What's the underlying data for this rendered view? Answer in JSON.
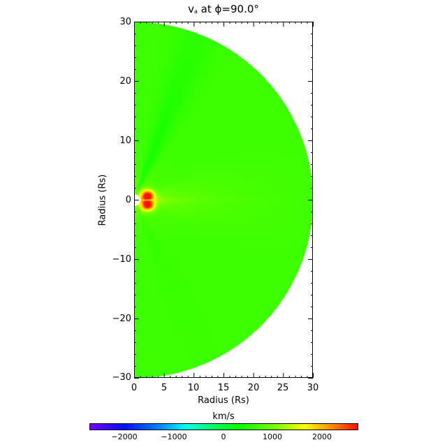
{
  "title": {
    "var": "v",
    "sub": "a",
    "rest": " at ϕ=90.0°"
  },
  "chart_data": {
    "type": "heatmap",
    "title": "v_a at ϕ=90.0°",
    "xlabel": "Radius (Rs)",
    "ylabel": "Radius (Rs)",
    "xlim": [
      0,
      30
    ],
    "ylim": [
      -30,
      30
    ],
    "xticks": [
      0,
      5,
      10,
      15,
      20,
      25,
      30
    ],
    "yticks": [
      -30,
      -20,
      -10,
      0,
      10,
      20,
      30
    ],
    "domain_shape": "half-disk of radius 30 Rs centered at origin, inner boundary ~1 Rs (white)",
    "colorbar": {
      "label": "km/s",
      "range": [
        -2700,
        2700
      ],
      "ticks": [
        -2000,
        -1000,
        0,
        1000,
        2000
      ],
      "colormap": "rainbow (purple-blue-cyan-green-yellow-red)"
    },
    "features": [
      {
        "description": "strong positive (~2000-2700 km/s) lobes just right of origin at r~1.5-3 Rs, split above and below equator",
        "value_max": 2600
      },
      {
        "description": "background mostly ~500-900 km/s (green)",
        "value": 700
      },
      {
        "description": "slightly lower values (~300 km/s, green-cyan) in streamer band toward upper-left",
        "value": 300
      },
      {
        "description": "yellow-green enhancement ~1100 km/s near equator within ~10 Rs",
        "value": 1100
      }
    ]
  },
  "axes": {
    "y_ticks": [
      "30",
      "20",
      "10",
      "0",
      "−10",
      "−20",
      "−30"
    ],
    "x_ticks": [
      "0",
      "5",
      "10",
      "15",
      "20",
      "25",
      "30"
    ],
    "xlabel": "Radius (Rs)",
    "ylabel": "Radius (Rs)"
  },
  "colorbar": {
    "title": "km/s",
    "ticks": [
      "−2000",
      "−1000",
      "0",
      "1000",
      "2000"
    ]
  }
}
